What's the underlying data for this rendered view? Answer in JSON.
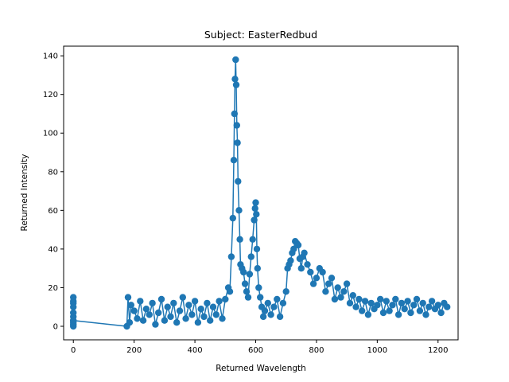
{
  "chart_data": {
    "type": "line",
    "title": "Subject: EasterRedbud",
    "xlabel": "Returned Wavelength",
    "ylabel": "Returned Intensity",
    "xlim": [
      -32,
      1266
    ],
    "ylim": [
      -7,
      145
    ],
    "xticks": [
      0,
      200,
      400,
      600,
      800,
      1000,
      1200
    ],
    "yticks": [
      0,
      20,
      40,
      60,
      80,
      100,
      120,
      140
    ],
    "grid": false,
    "marker": "circle",
    "series": [
      {
        "color": "#1f77b4",
        "x": [
          0,
          0,
          0,
          0,
          0,
          0,
          0,
          0,
          0,
          0,
          0,
          176,
          180,
          185,
          190,
          200,
          210,
          220,
          230,
          240,
          250,
          260,
          270,
          280,
          290,
          300,
          310,
          320,
          330,
          340,
          350,
          360,
          370,
          380,
          390,
          400,
          410,
          420,
          430,
          440,
          450,
          460,
          470,
          480,
          490,
          500,
          510,
          515,
          520,
          525,
          528,
          530,
          532,
          534,
          536,
          538,
          540,
          542,
          545,
          548,
          550,
          555,
          560,
          565,
          570,
          575,
          580,
          585,
          590,
          595,
          598,
          600,
          602,
          604,
          606,
          610,
          615,
          620,
          625,
          630,
          640,
          650,
          660,
          670,
          680,
          690,
          700,
          705,
          710,
          715,
          720,
          725,
          730,
          735,
          740,
          745,
          750,
          755,
          760,
          770,
          780,
          790,
          800,
          810,
          820,
          830,
          840,
          850,
          860,
          870,
          880,
          890,
          900,
          910,
          920,
          930,
          940,
          950,
          960,
          970,
          980,
          990,
          1000,
          1010,
          1020,
          1030,
          1040,
          1050,
          1060,
          1070,
          1080,
          1090,
          1100,
          1110,
          1120,
          1130,
          1140,
          1150,
          1160,
          1170,
          1180,
          1190,
          1200,
          1210,
          1220,
          1230
        ],
        "y": [
          15,
          13,
          10,
          7,
          5,
          3,
          1,
          0,
          12,
          2,
          3,
          0,
          15,
          2,
          11,
          8,
          4,
          13,
          3,
          9,
          6,
          12,
          1,
          7,
          14,
          3,
          10,
          5,
          12,
          2,
          8,
          15,
          4,
          11,
          6,
          13,
          2,
          9,
          5,
          12,
          3,
          10,
          6,
          13,
          4,
          14,
          20,
          18,
          36,
          56,
          86,
          110,
          128,
          138,
          125,
          104,
          95,
          75,
          60,
          45,
          32,
          30,
          28,
          22,
          18,
          15,
          27,
          36,
          45,
          55,
          61,
          64,
          58,
          40,
          30,
          20,
          15,
          10,
          5,
          8,
          12,
          6,
          10,
          14,
          5,
          12,
          18,
          30,
          32,
          34,
          38,
          40,
          44,
          43,
          42,
          35,
          30,
          36,
          38,
          32,
          28,
          22,
          25,
          30,
          28,
          18,
          22,
          25,
          14,
          20,
          15,
          18,
          22,
          12,
          16,
          10,
          14,
          8,
          13,
          6,
          12,
          9,
          11,
          14,
          7,
          13,
          8,
          11,
          14,
          6,
          12,
          9,
          13,
          7,
          11,
          14,
          8,
          12,
          6,
          10,
          13,
          9,
          11,
          7,
          12,
          10
        ]
      }
    ]
  }
}
